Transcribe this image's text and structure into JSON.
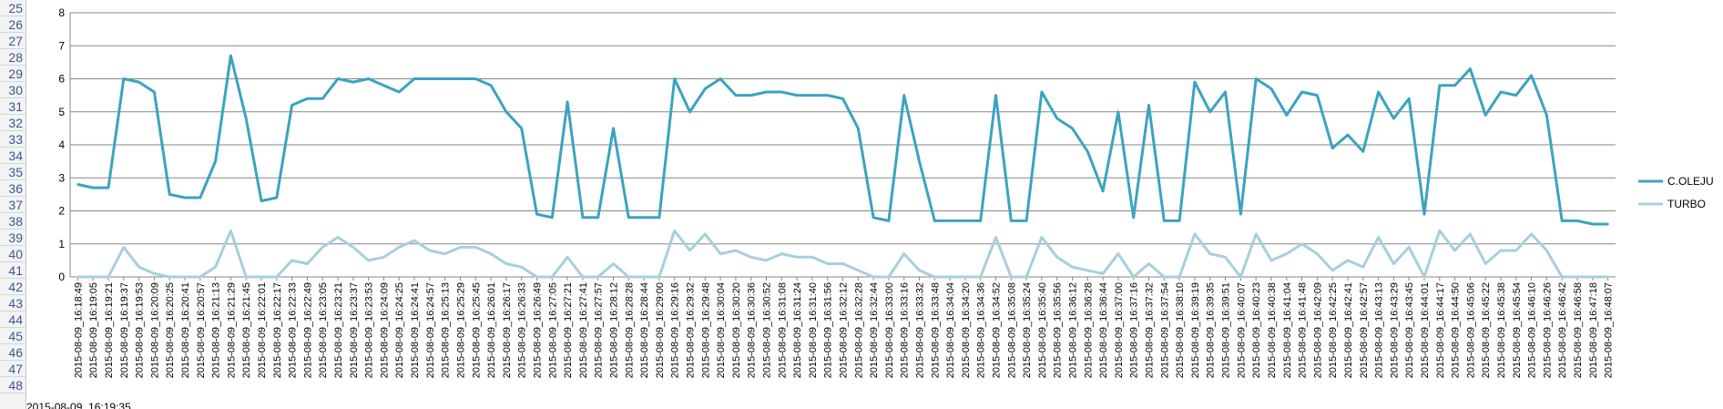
{
  "row_headers": [
    "25",
    "26",
    "27",
    "28",
    "29",
    "30",
    "31",
    "32",
    "33",
    "34",
    "35",
    "36",
    "37",
    "38",
    "39",
    "40",
    "41",
    "42",
    "43",
    "44",
    "45",
    "46",
    "47",
    "48"
  ],
  "bottom_row_text": "2015-08-09_16:19:35",
  "colors": {
    "coleju": "#3ba3c1",
    "turbo": "#a7cfdc",
    "grid": "#878787",
    "axis_text": "#000000"
  },
  "chart_data": {
    "type": "line",
    "title": "",
    "xlabel": "",
    "ylabel": "",
    "ylim": [
      0,
      8
    ],
    "y_ticks": [
      0,
      1,
      2,
      3,
      4,
      5,
      6,
      7,
      8
    ],
    "grid": "horizontal",
    "legend_position": "right",
    "x": [
      "2015-08-09_16:18:49",
      "2015-08-09_16:19:05",
      "2015-08-09_16:19:21",
      "2015-08-09_16:19:37",
      "2015-08-09_16:19:53",
      "2015-08-09_16:20:09",
      "2015-08-09_16:20:25",
      "2015-08-09_16:20:41",
      "2015-08-09_16:20:57",
      "2015-08-09_16:21:13",
      "2015-08-09_16:21:29",
      "2015-08-09_16:21:45",
      "2015-08-09_16:22:01",
      "2015-08-09_16:22:17",
      "2015-08-09_16:22:33",
      "2015-08-09_16:22:49",
      "2015-08-09_16:23:05",
      "2015-08-09_16:23:21",
      "2015-08-09_16:23:37",
      "2015-08-09_16:23:53",
      "2015-08-09_16:24:09",
      "2015-08-09_16:24:25",
      "2015-08-09_16:24:41",
      "2015-08-09_16:24:57",
      "2015-08-09_16:25:13",
      "2015-08-09_16:25:29",
      "2015-08-09_16:25:45",
      "2015-08-09_16:26:01",
      "2015-08-09_16:26:17",
      "2015-08-09_16:26:33",
      "2015-08-09_16:26:49",
      "2015-08-09_16:27:05",
      "2015-08-09_16:27:21",
      "2015-08-09_16:27:41",
      "2015-08-09_16:27:57",
      "2015-08-09_16:28:12",
      "2015-08-09_16:28:28",
      "2015-08-09_16:28:44",
      "2015-08-09_16:29:00",
      "2015-08-09_16:29:16",
      "2015-08-09_16:29:32",
      "2015-08-09_16:29:48",
      "2015-08-09_16:30:04",
      "2015-08-09_16:30:20",
      "2015-08-09_16:30:36",
      "2015-08-09_16:30:52",
      "2015-08-09_16:31:08",
      "2015-08-09_16:31:24",
      "2015-08-09_16:31:40",
      "2015-08-09_16:31:56",
      "2015-08-09_16:32:12",
      "2015-08-09_16:32:28",
      "2015-08-09_16:32:44",
      "2015-08-09_16:33:00",
      "2015-08-09_16:33:16",
      "2015-08-09_16:33:32",
      "2015-08-09_16:33:48",
      "2015-08-09_16:34:04",
      "2015-08-09_16:34:20",
      "2015-08-09_16:34:36",
      "2015-08-09_16:34:52",
      "2015-08-09_16:35:08",
      "2015-08-09_16:35:24",
      "2015-08-09_16:35:40",
      "2015-08-09_16:35:56",
      "2015-08-09_16:36:12",
      "2015-08-09_16:36:28",
      "2015-08-09_16:36:44",
      "2015-08-09_16:37:00",
      "2015-08-09_16:37:16",
      "2015-08-09_16:37:32",
      "2015-08-09_16:37:54",
      "2015-08-09_16:38:10",
      "2015-08-09_16:39:19",
      "2015-08-09_16:39:35",
      "2015-08-09_16:39:51",
      "2015-08-09_16:40:07",
      "2015-08-09_16:40:23",
      "2015-08-09_16:40:38",
      "2015-08-09_16:41:04",
      "2015-08-09_16:41:48",
      "2015-08-09_16:42:09",
      "2015-08-09_16:42:25",
      "2015-08-09_16:42:41",
      "2015-08-09_16:42:57",
      "2015-08-09_16:43:13",
      "2015-08-09_16:43:29",
      "2015-08-09_16:43:45",
      "2015-08-09_16:44:01",
      "2015-08-09_16:44:17",
      "2015-08-09_16:44:50",
      "2015-08-09_16:45:06",
      "2015-08-09_16:45:22",
      "2015-08-09_16:45:38",
      "2015-08-09_16:45:54",
      "2015-08-09_16:46:10",
      "2015-08-09_16:46:26",
      "2015-08-09_16:46:42",
      "2015-08-09_16:46:58",
      "2015-08-09_16:47:18",
      "2015-08-09_16:48:07"
    ],
    "series": [
      {
        "name": "C.OLEJU",
        "color": "#3ba3c1",
        "values": [
          2.8,
          2.7,
          2.7,
          6.0,
          5.9,
          5.6,
          2.5,
          2.4,
          2.4,
          3.5,
          6.7,
          4.8,
          2.3,
          2.4,
          5.2,
          5.4,
          5.4,
          6.0,
          5.9,
          6.0,
          5.8,
          5.6,
          6.0,
          6.0,
          6.0,
          6.0,
          6.0,
          5.8,
          5.0,
          4.5,
          1.9,
          1.8,
          5.3,
          1.8,
          1.8,
          4.5,
          1.8,
          1.8,
          1.8,
          6.0,
          5.0,
          5.7,
          6.0,
          5.5,
          5.5,
          5.6,
          5.6,
          5.5,
          5.5,
          5.5,
          5.4,
          4.5,
          1.8,
          1.7,
          5.5,
          3.5,
          1.7,
          1.7,
          1.7,
          1.7,
          5.5,
          1.7,
          1.7,
          5.6,
          4.8,
          4.5,
          3.8,
          2.6,
          5.0,
          1.8,
          5.2,
          1.7,
          1.7,
          5.9,
          5.0,
          5.6,
          1.9,
          6.0,
          5.7,
          4.9,
          5.6,
          5.5,
          3.9,
          4.3,
          3.8,
          5.6,
          4.8,
          5.4,
          1.9,
          5.8,
          5.8,
          6.3,
          4.9,
          5.6,
          5.5,
          6.1,
          4.9,
          1.7,
          1.7,
          1.6,
          1.6
        ]
      },
      {
        "name": "TURBO",
        "color": "#a7cfdc",
        "values": [
          0.0,
          0.0,
          0.0,
          0.9,
          0.3,
          0.1,
          0.0,
          0.0,
          0.0,
          0.3,
          1.4,
          0.0,
          0.0,
          0.0,
          0.5,
          0.4,
          0.9,
          1.2,
          0.9,
          0.5,
          0.6,
          0.9,
          1.1,
          0.8,
          0.7,
          0.9,
          0.9,
          0.7,
          0.4,
          0.3,
          0.0,
          0.0,
          0.6,
          0.0,
          0.0,
          0.4,
          0.0,
          0.0,
          0.0,
          1.4,
          0.8,
          1.3,
          0.7,
          0.8,
          0.6,
          0.5,
          0.7,
          0.6,
          0.6,
          0.4,
          0.4,
          0.2,
          0.0,
          0.0,
          0.7,
          0.2,
          0.0,
          0.0,
          0.0,
          0.0,
          1.2,
          0.0,
          0.0,
          1.2,
          0.6,
          0.3,
          0.2,
          0.1,
          0.7,
          0.0,
          0.4,
          0.0,
          0.0,
          1.3,
          0.7,
          0.6,
          0.0,
          1.3,
          0.5,
          0.7,
          1.0,
          0.7,
          0.2,
          0.5,
          0.3,
          1.2,
          0.4,
          0.9,
          0.0,
          1.4,
          0.8,
          1.3,
          0.4,
          0.8,
          0.8,
          1.3,
          0.8,
          0.0,
          0.0,
          0.0,
          0.0
        ]
      }
    ]
  }
}
